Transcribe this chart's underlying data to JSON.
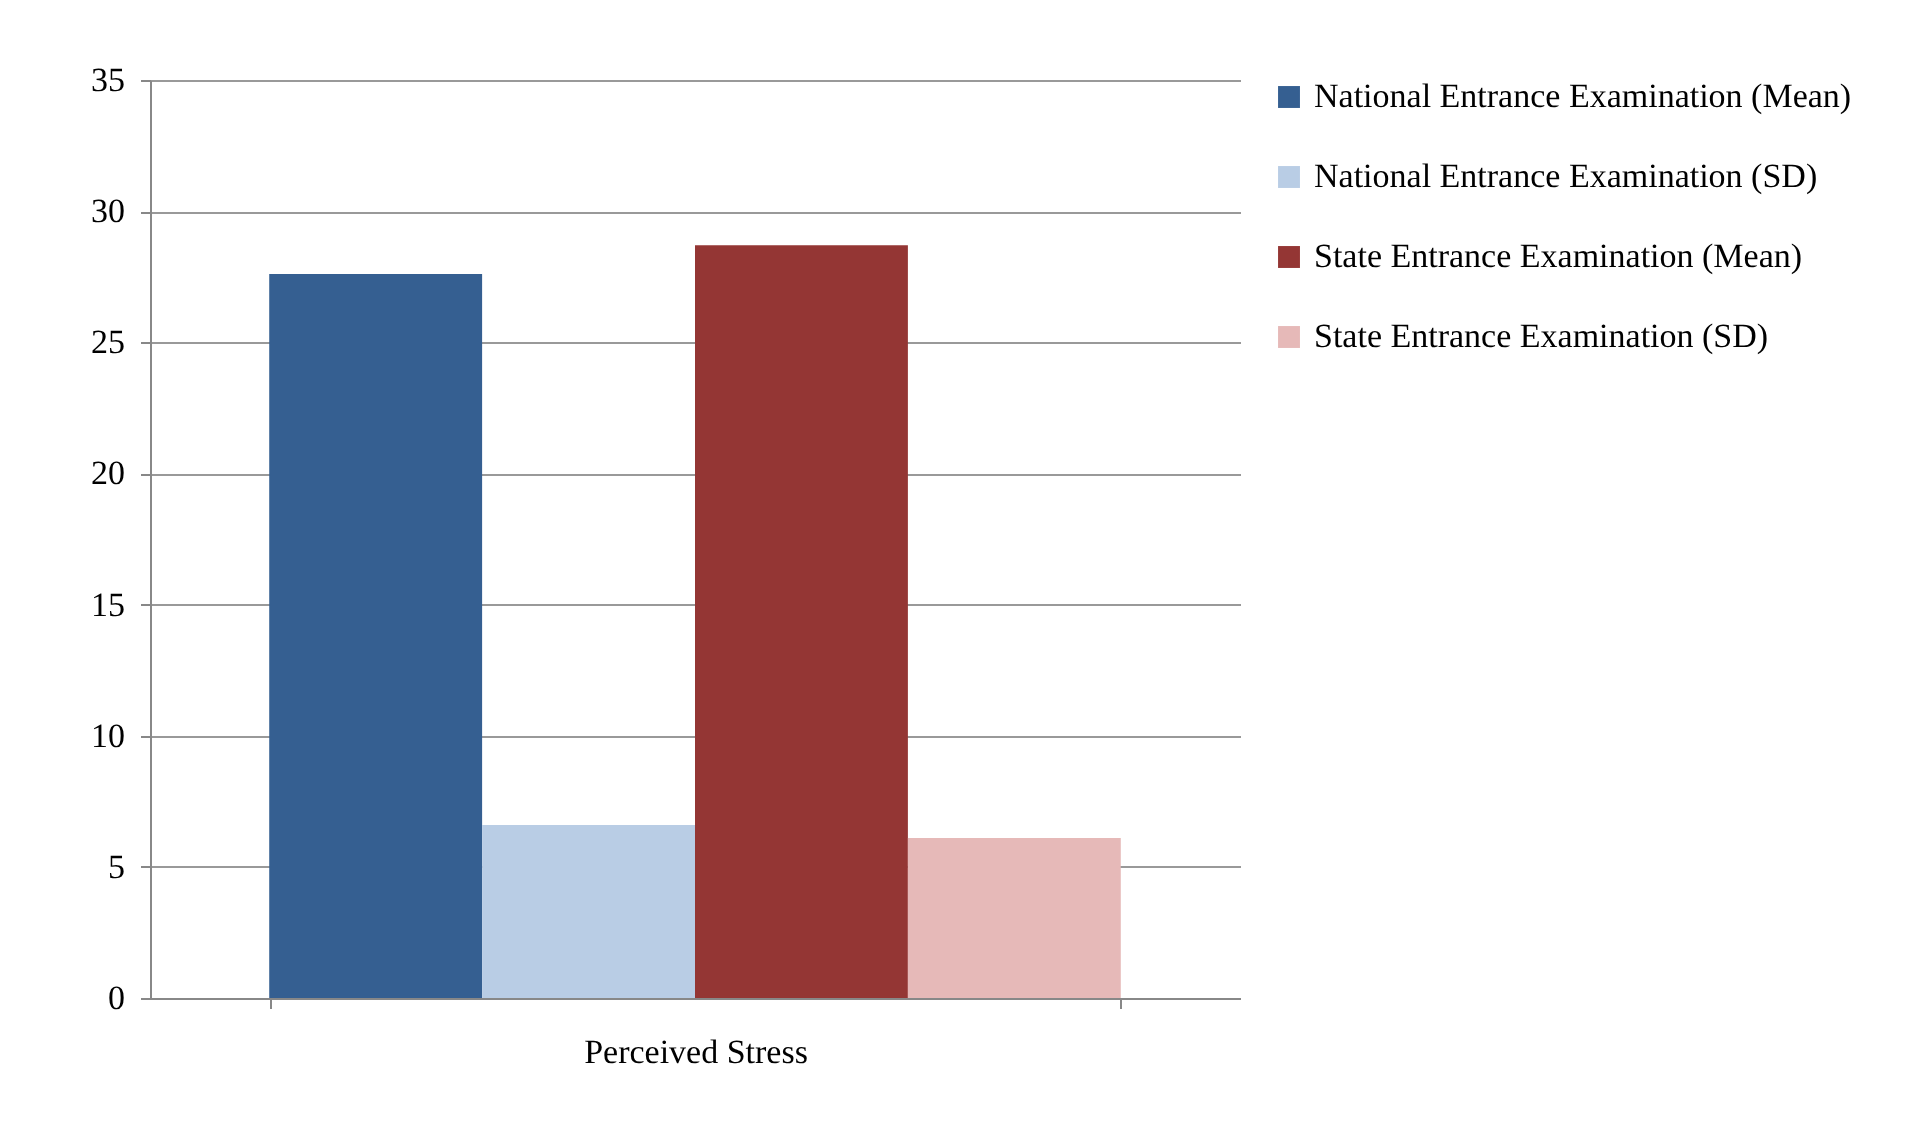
{
  "chart_data": {
    "type": "bar",
    "categories": [
      "Perceived Stress"
    ],
    "series": [
      {
        "name": "National Entrance Examination (Mean)",
        "color": "#355f91",
        "values": [
          27.6
        ]
      },
      {
        "name": "National Entrance Examination (SD)",
        "color": "#b9cde5",
        "values": [
          6.6
        ]
      },
      {
        "name": "State Entrance Examination (Mean)",
        "color": "#943634",
        "values": [
          28.7
        ]
      },
      {
        "name": "State Entrance Examination (SD)",
        "color": "#e6b9b8",
        "values": [
          6.1
        ]
      }
    ],
    "ylim": [
      0,
      35
    ],
    "yticks": [
      0,
      5,
      10,
      15,
      20,
      25,
      30,
      35
    ],
    "grid": "y",
    "legend": "right"
  }
}
